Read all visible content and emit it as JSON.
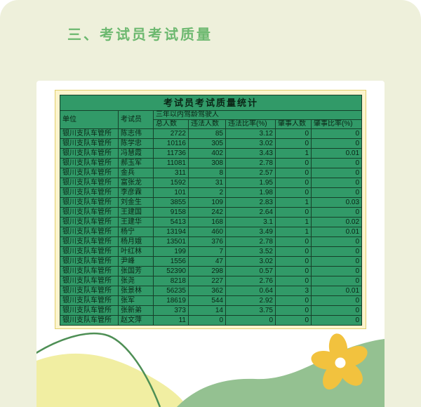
{
  "page": {
    "section_heading": "三、考试员考试质量"
  },
  "table": {
    "title": "考试员考试质量统计",
    "columns": {
      "unit": "单位",
      "examiner": "考试员",
      "group": "三年以内驾龄驾驶人",
      "sub": [
        "总人数",
        "违法人数",
        "违法比率(%)",
        "肇事人数",
        "肇事比率(%)"
      ]
    },
    "rows": [
      {
        "unit": "银川支队车管所",
        "examiner": "陈志伟",
        "total": "2722",
        "violations": "85",
        "violation_rate": "3.12",
        "accidents": "0",
        "accident_rate": "0"
      },
      {
        "unit": "银川支队车管所",
        "examiner": "陈学忠",
        "total": "10116",
        "violations": "305",
        "violation_rate": "3.02",
        "accidents": "0",
        "accident_rate": "0"
      },
      {
        "unit": "银川支队车管所",
        "examiner": "冯慧霞",
        "total": "11736",
        "violations": "402",
        "violation_rate": "3.43",
        "accidents": "1",
        "accident_rate": "0.01"
      },
      {
        "unit": "银川支队车管所",
        "examiner": "郝玉军",
        "total": "11081",
        "violations": "308",
        "violation_rate": "2.78",
        "accidents": "0",
        "accident_rate": "0"
      },
      {
        "unit": "银川支队车管所",
        "examiner": "金兵",
        "total": "311",
        "violations": "8",
        "violation_rate": "2.57",
        "accidents": "0",
        "accident_rate": "0"
      },
      {
        "unit": "银川支队车管所",
        "examiner": "富张龙",
        "total": "1592",
        "violations": "31",
        "violation_rate": "1.95",
        "accidents": "0",
        "accident_rate": "0"
      },
      {
        "unit": "银川支队车管所",
        "examiner": "李彦霖",
        "total": "101",
        "violations": "2",
        "violation_rate": "1.98",
        "accidents": "0",
        "accident_rate": "0"
      },
      {
        "unit": "银川支队车管所",
        "examiner": "刘金生",
        "total": "3855",
        "violations": "109",
        "violation_rate": "2.83",
        "accidents": "1",
        "accident_rate": "0.03"
      },
      {
        "unit": "银川支队车管所",
        "examiner": "王建国",
        "total": "9158",
        "violations": "242",
        "violation_rate": "2.64",
        "accidents": "0",
        "accident_rate": "0"
      },
      {
        "unit": "银川支队车管所",
        "examiner": "王建华",
        "total": "5413",
        "violations": "168",
        "violation_rate": "3.1",
        "accidents": "1",
        "accident_rate": "0.02"
      },
      {
        "unit": "银川支队车管所",
        "examiner": "杨宁",
        "total": "13194",
        "violations": "460",
        "violation_rate": "3.49",
        "accidents": "1",
        "accident_rate": "0.01"
      },
      {
        "unit": "银川支队车管所",
        "examiner": "杨月娥",
        "total": "13501",
        "violations": "376",
        "violation_rate": "2.78",
        "accidents": "0",
        "accident_rate": "0"
      },
      {
        "unit": "银川支队车管所",
        "examiner": "叶红林",
        "total": "199",
        "violations": "7",
        "violation_rate": "3.52",
        "accidents": "0",
        "accident_rate": "0"
      },
      {
        "unit": "银川支队车管所",
        "examiner": "尹峰",
        "total": "1556",
        "violations": "47",
        "violation_rate": "3.02",
        "accidents": "0",
        "accident_rate": "0"
      },
      {
        "unit": "银川支队车管所",
        "examiner": "张国芳",
        "total": "52390",
        "violations": "298",
        "violation_rate": "0.57",
        "accidents": "0",
        "accident_rate": "0"
      },
      {
        "unit": "银川支队车管所",
        "examiner": "张尧",
        "total": "8218",
        "violations": "227",
        "violation_rate": "2.76",
        "accidents": "0",
        "accident_rate": "0"
      },
      {
        "unit": "银川支队车管所",
        "examiner": "张景林",
        "total": "56235",
        "violations": "362",
        "violation_rate": "0.64",
        "accidents": "3",
        "accident_rate": "0.01"
      },
      {
        "unit": "银川支队车管所",
        "examiner": "张军",
        "total": "18619",
        "violations": "544",
        "violation_rate": "2.92",
        "accidents": "0",
        "accident_rate": "0"
      },
      {
        "unit": "银川支队车管所",
        "examiner": "张新弟",
        "total": "373",
        "violations": "14",
        "violation_rate": "3.75",
        "accidents": "0",
        "accident_rate": "0"
      },
      {
        "unit": "银川支队车管所",
        "examiner": "赵文萍",
        "total": "11",
        "violations": "0",
        "violation_rate": "0",
        "accidents": "0",
        "accident_rate": "0"
      }
    ]
  },
  "colors": {
    "page_background": "#eef0db",
    "heading_green": "#6cb86f",
    "table_green": "#319a68",
    "table_border": "#16402a",
    "card_yellow": "#fcf4cd",
    "card_yellow_border": "#e2cf6e",
    "wave_yellow": "#f1eea2",
    "wave_green": "#94c191",
    "stem_green": "#4e8f55",
    "flower_yellow": "#f2c23e"
  },
  "decor": {
    "flower": "flower-icon",
    "waves": "decorative waves"
  }
}
